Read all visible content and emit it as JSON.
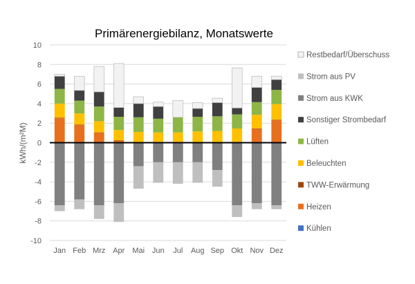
{
  "chart_data": {
    "type": "bar",
    "stacked": true,
    "title": "Primärenergiebilanz, Monatswerte",
    "ylabel": "kWh/(m²M)",
    "xlabel": "",
    "ylim": [
      -10,
      10
    ],
    "yticks": [
      "10",
      "8",
      "6",
      "4",
      "2",
      "0",
      "-2",
      "-4",
      "-6",
      "-8",
      "-10"
    ],
    "grid": true,
    "legend_position": "right",
    "categories": [
      "Jan",
      "Feb",
      "Mrz",
      "Apr",
      "Mai",
      "Jun",
      "Jul",
      "Aug",
      "Sep",
      "Okt",
      "Nov",
      "Dez"
    ],
    "series": [
      {
        "name": "Kühlen",
        "color": "#4472C4",
        "values": [
          0,
          0,
          0,
          0,
          0,
          0,
          0,
          0,
          0,
          0,
          0,
          0
        ]
      },
      {
        "name": "Heizen",
        "color": "#E7701F",
        "values": [
          2.5,
          1.8,
          1.0,
          0.2,
          0,
          0,
          0,
          0,
          0,
          0,
          1.4,
          2.3
        ]
      },
      {
        "name": "TWW-Erwärmung",
        "color": "#9E480E",
        "values": [
          0.05,
          0.05,
          0.05,
          0.05,
          0.05,
          0.05,
          0.05,
          0.05,
          0.05,
          0.05,
          0.05,
          0.05
        ]
      },
      {
        "name": "Beleuchten",
        "color": "#FFC000",
        "values": [
          1.45,
          1.15,
          1.15,
          1.05,
          1.05,
          1.0,
          1.0,
          1.1,
          1.15,
          1.4,
          1.4,
          1.6
        ]
      },
      {
        "name": "Lüften",
        "color": "#8DB646",
        "values": [
          1.5,
          1.3,
          1.5,
          1.35,
          1.5,
          1.4,
          1.55,
          1.5,
          1.5,
          1.45,
          1.3,
          1.45
        ]
      },
      {
        "name": "Sonstiger Strombedarf",
        "color": "#404040",
        "values": [
          1.3,
          1.05,
          1.5,
          0.95,
          1.4,
          1.25,
          0,
          0.85,
          1.4,
          0.65,
          1.5,
          1.05
        ]
      },
      {
        "name": "Strom aus KWK",
        "color": "#808080",
        "values": [
          -6.4,
          -5.8,
          -6.4,
          -6.2,
          -2.4,
          -2.0,
          -2.0,
          -2.0,
          -2.8,
          -6.4,
          -6.2,
          -6.4
        ]
      },
      {
        "name": "Strom aus PV",
        "color": "#BFBFBF",
        "values": [
          -0.6,
          -1.0,
          -1.4,
          -1.9,
          -2.3,
          -2.1,
          -2.2,
          -2.1,
          -1.7,
          -1.2,
          -0.6,
          -0.4
        ]
      },
      {
        "name": "Restbedarf/Überschuss",
        "color": "#F2F2F2",
        "values": [
          0.2,
          1.45,
          2.6,
          4.5,
          0.7,
          0.45,
          1.7,
          0.6,
          0.45,
          4.1,
          1.15,
          0.35
        ]
      }
    ],
    "legend_order": [
      "Restbedarf/Überschuss",
      "Strom aus PV",
      "Strom aus KWK",
      "Sonstiger Strombedarf",
      "Lüften",
      "Beleuchten",
      "TWW-Erwärmung",
      "Heizen",
      "Kühlen"
    ]
  }
}
